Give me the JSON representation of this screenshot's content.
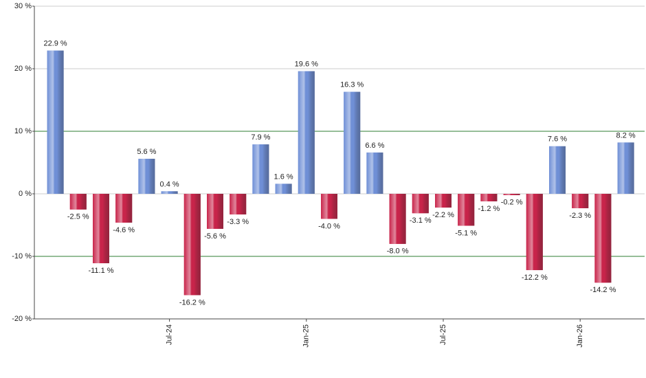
{
  "chart_data": {
    "type": "bar",
    "categories": [
      null,
      null,
      null,
      null,
      null,
      "Jul-24",
      null,
      null,
      null,
      null,
      null,
      "Jan-25",
      null,
      null,
      null,
      null,
      null,
      "Jul-25",
      null,
      null,
      null,
      null,
      null,
      "Jan-26",
      null,
      null
    ],
    "values": [
      22.9,
      -2.5,
      -11.1,
      -4.6,
      5.6,
      0.4,
      -16.2,
      -5.6,
      -3.3,
      7.9,
      1.6,
      19.6,
      -4.0,
      16.3,
      6.6,
      -8.0,
      -3.1,
      -2.2,
      -5.1,
      -1.2,
      -0.2,
      -12.2,
      7.6,
      -2.3,
      -14.2,
      8.2
    ],
    "value_labels": [
      "22.9 %",
      "-2.5 %",
      "-11.1 %",
      "-4.6 %",
      "5.6 %",
      "0.4 %",
      "-16.2 %",
      "-5.6 %",
      "-3.3 %",
      "7.9 %",
      "1.6 %",
      "19.6 %",
      "-4.0 %",
      "16.3 %",
      "6.6 %",
      "-8.0 %",
      "-3.1 %",
      "-2.2 %",
      "-5.1 %",
      "-1.2 %",
      "-0.2 %",
      "-12.2 %",
      "7.6 %",
      "-2.3 %",
      "-14.2 %",
      "8.2 %"
    ],
    "colors": {
      "positive": "#6f8fd6",
      "negative": "#c8244a"
    },
    "ylim": [
      -20,
      30
    ],
    "yticks": [
      {
        "value": -20,
        "label": "-20 %"
      },
      {
        "value": -10,
        "label": "-10 %"
      },
      {
        "value": 0,
        "label": "0 %"
      },
      {
        "value": 10,
        "label": "10 %"
      },
      {
        "value": 20,
        "label": "20 %"
      },
      {
        "value": 30,
        "label": "30 %"
      }
    ],
    "grid": true,
    "grid_color": "#cccccc",
    "reference_lines": {
      "values": [
        -10,
        10
      ],
      "color": "#2e7d32"
    }
  }
}
